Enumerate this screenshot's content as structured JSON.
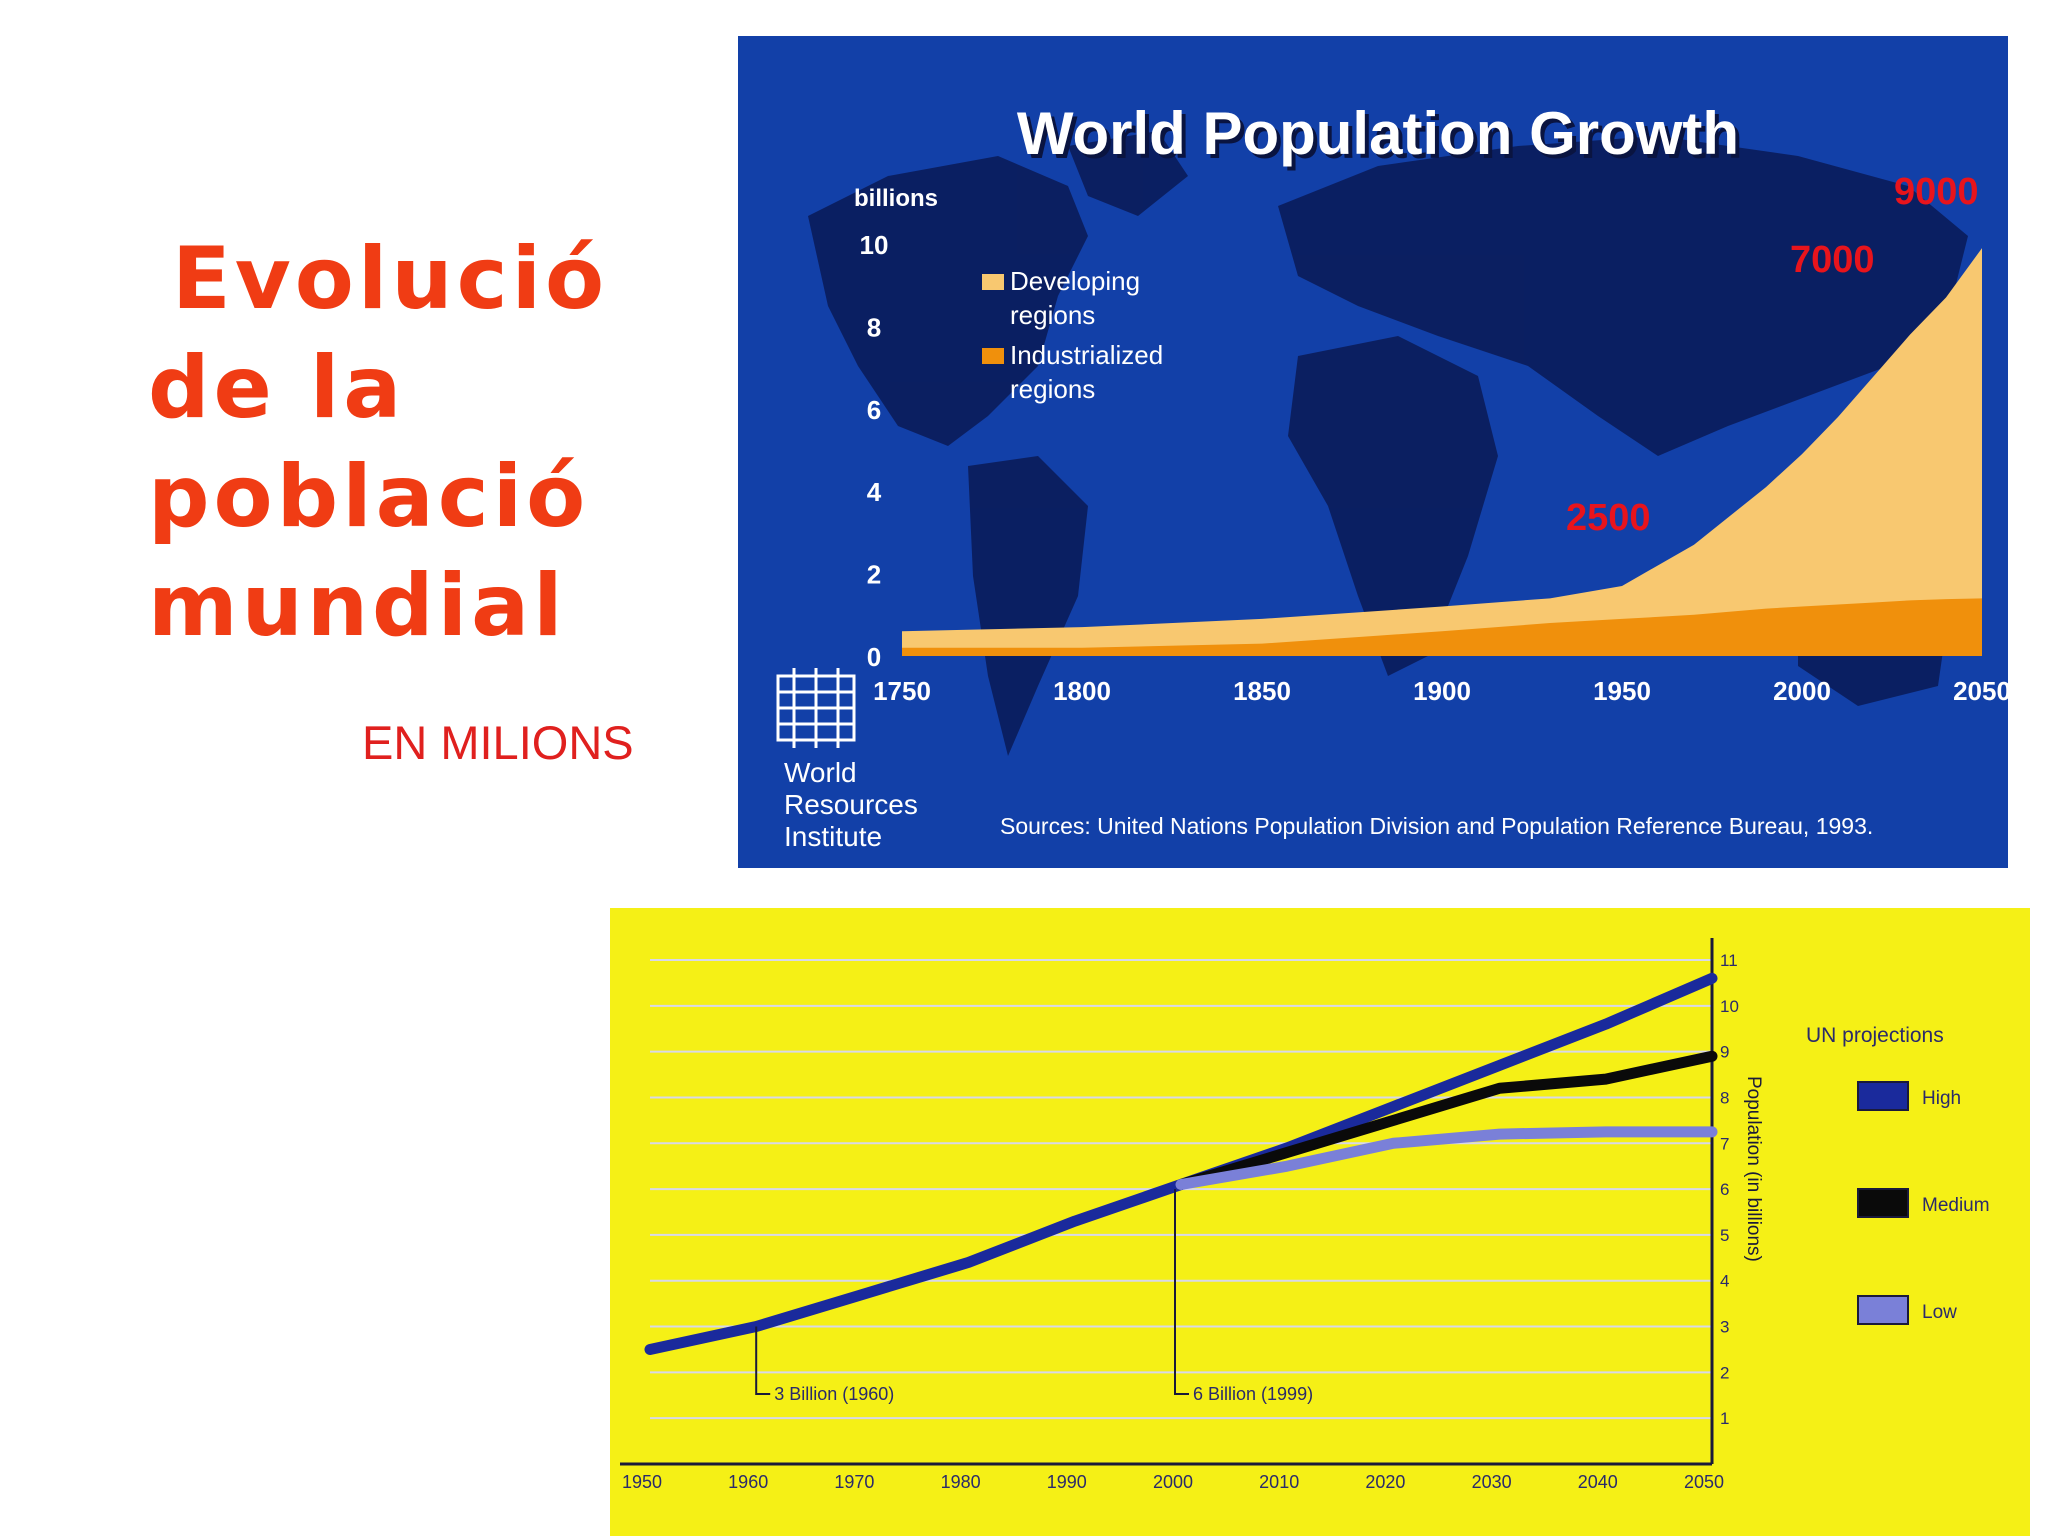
{
  "slide": {
    "title_lines": [
      "Evolució",
      "de la",
      "població",
      "mundial"
    ],
    "subtitle": "EN MILIONS"
  },
  "chart_data": [
    {
      "type": "area",
      "title": "World Population Growth",
      "ylabel": "billions",
      "ylim": [
        0,
        10
      ],
      "yticks": [
        0,
        2,
        4,
        6,
        8,
        10
      ],
      "xticks": [
        1750,
        1800,
        1850,
        1900,
        1950,
        2000,
        2050
      ],
      "x": [
        1750,
        1800,
        1850,
        1900,
        1930,
        1950,
        1970,
        1990,
        2000,
        2010,
        2020,
        2030,
        2040,
        2050
      ],
      "series": [
        {
          "name": "Developing regions",
          "color": "#f8c870",
          "values": [
            0.6,
            0.7,
            0.9,
            1.2,
            1.4,
            1.7,
            2.7,
            4.1,
            4.9,
            5.8,
            6.8,
            7.8,
            8.7,
            9.9
          ]
        },
        {
          "name": "Industrialized regions",
          "color": "#f0900c",
          "values": [
            0.2,
            0.2,
            0.3,
            0.6,
            0.8,
            0.9,
            1.0,
            1.15,
            1.2,
            1.25,
            1.3,
            1.35,
            1.38,
            1.4
          ]
        }
      ],
      "legend_lines": [
        [
          "Developing",
          "regions"
        ],
        [
          "Industrialized",
          "regions"
        ]
      ],
      "annotations": [
        "2500",
        "7000",
        "9000"
      ],
      "source": "Sources: United Nations Population Division and Population Reference Bureau, 1993.",
      "logo_text": [
        "World",
        "Resources",
        "Institute"
      ],
      "colors": {
        "background": "#1240a8",
        "land": "#0b1e5e",
        "annotation": "#e8141c",
        "text": "#ffffff"
      }
    },
    {
      "type": "line",
      "xlim": [
        1950,
        2050
      ],
      "ylim": [
        0,
        11
      ],
      "xticks": [
        1950,
        1960,
        1970,
        1980,
        1990,
        2000,
        2010,
        2020,
        2030,
        2040,
        2050
      ],
      "yticks": [
        1,
        2,
        3,
        4,
        5,
        6,
        7,
        8,
        9,
        10,
        11
      ],
      "ylabel": "Population (in billions)",
      "legend_title": "UN projections",
      "x_hist": [
        1950,
        1960,
        1970,
        1980,
        1990,
        2000
      ],
      "hist_values": [
        2.5,
        3.0,
        3.7,
        4.4,
        5.3,
        6.1
      ],
      "x_proj": [
        2000,
        2010,
        2020,
        2030,
        2040,
        2050
      ],
      "series": [
        {
          "name": "High",
          "color": "#1a2a9c",
          "values": [
            6.1,
            6.9,
            7.8,
            8.7,
            9.6,
            10.6
          ]
        },
        {
          "name": "Medium",
          "color": "#0a0a0a",
          "values": [
            6.1,
            6.8,
            7.5,
            8.2,
            8.4,
            8.9
          ]
        },
        {
          "name": "Low",
          "color": "#7a80d8",
          "values": [
            6.1,
            6.5,
            7.0,
            7.2,
            7.25,
            7.25
          ]
        }
      ],
      "annotations": [
        {
          "label": "3 Billion (1960)",
          "x": 1960,
          "y": 3.0
        },
        {
          "label": "6 Billion (1999)",
          "x": 2000,
          "y": 6.0
        }
      ],
      "colors": {
        "background": "#f5f016",
        "grid": "#d8d8e8",
        "axis": "#1a1a3a",
        "text": "#2a2a6a"
      }
    }
  ]
}
